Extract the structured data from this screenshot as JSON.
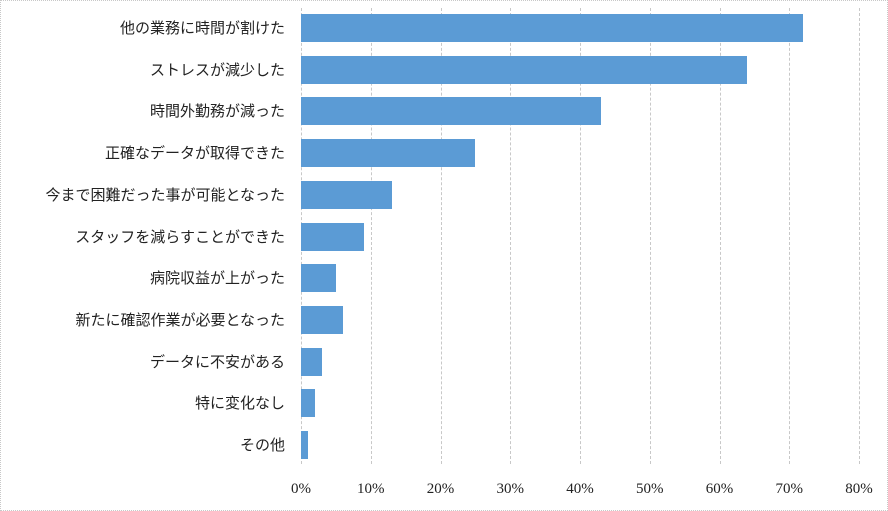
{
  "chart_data": {
    "type": "bar",
    "orientation": "horizontal",
    "title": "",
    "xlabel": "",
    "ylabel": "",
    "categories": [
      "他の業務に時間が割けた",
      "ストレスが減少した",
      "時間外勤務が減った",
      "正確なデータが取得できた",
      "今まで困難だった事が可能となった",
      "スタッフを減らすことができた",
      "病院収益が上がった",
      "新たに確認作業が必要となった",
      "データに不安がある",
      "特に変化なし",
      "その他"
    ],
    "values": [
      72,
      64,
      43,
      25,
      13,
      9,
      5,
      6,
      3,
      2,
      1
    ],
    "unit": "%",
    "xlim": [
      0,
      80
    ],
    "xticks": [
      "0%",
      "10%",
      "20%",
      "30%",
      "40%",
      "50%",
      "60%",
      "70%",
      "80%"
    ],
    "grid": "vertical dashed",
    "legend": "none",
    "bar_color": "#5b9bd5"
  }
}
